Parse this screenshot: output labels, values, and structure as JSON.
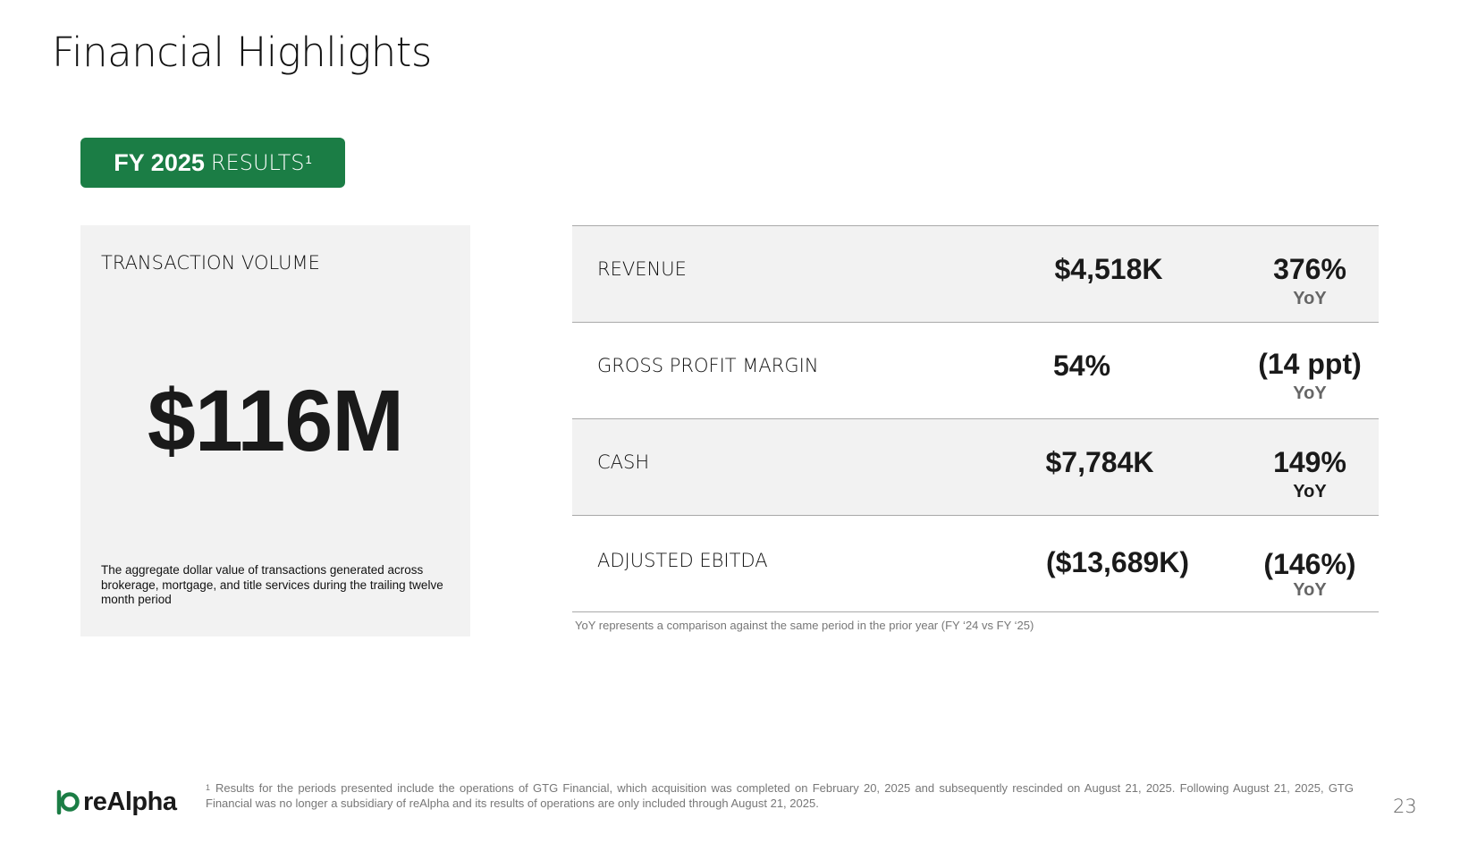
{
  "page_title": "Financial Highlights",
  "badge": {
    "bold": "FY 2025",
    "light": "RESULTS",
    "sup": "1"
  },
  "transaction_volume": {
    "label": "TRANSACTION VOLUME",
    "value": "$116M",
    "description": "The aggregate dollar value of transactions generated across brokerage, mortgage, and title services during the trailing twelve month period"
  },
  "metrics": [
    {
      "label": "REVENUE",
      "value": "$4,518K",
      "change": "376%",
      "yoy": "YoY"
    },
    {
      "label": "GROSS PROFIT MARGIN",
      "value": "54%",
      "change": "(14 ppt)",
      "yoy": "YoY"
    },
    {
      "label": "CASH",
      "value": "$7,784K",
      "change": "149%",
      "yoy": "YoY"
    },
    {
      "label": "ADJUSTED EBITDA",
      "value": "($13,689K)",
      "change": "(146%)",
      "yoy": "YoY"
    }
  ],
  "yoy_note": "YoY represents a comparison against the same period in the prior year (FY ‘24 vs FY ‘25)",
  "footnote": {
    "marker": "1",
    "text": "Results for the periods presented include the operations of GTG Financial, which acquisition was completed on February 20, 2025 and subsequently rescinded on August 21, 2025. Following August 21, 2025, GTG Financial was no longer a subsidiary of reAlpha and its results of operations are only included through August 21, 2025."
  },
  "logo": {
    "text": "reAlpha",
    "color": "#1b7d45"
  },
  "page_number": "23",
  "colors": {
    "accent": "#1b7d45",
    "card_bg": "#f2f2f2"
  }
}
